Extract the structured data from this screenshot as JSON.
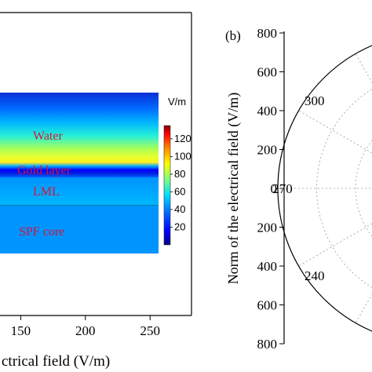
{
  "chart_data": [
    {
      "type": "heatmap",
      "panel_label": "",
      "regions": [
        "Water",
        "Gold layer",
        "LML",
        "SPF core"
      ],
      "colorbar": {
        "unit": "V/m",
        "ticks": [
          20,
          40,
          60,
          80,
          100,
          120
        ],
        "range": [
          0,
          135
        ],
        "colormap": [
          "#000080",
          "#0000ff",
          "#0080ff",
          "#00e0ff",
          "#7fff7f",
          "#ffff00",
          "#ff8000",
          "#ff0000",
          "#800000"
        ]
      },
      "xaxis": {
        "ticks": [
          150,
          200,
          250
        ],
        "tick_labels": [
          "150",
          "200",
          "250"
        ],
        "range": [
          134,
          282
        ],
        "label_visible": "ctrical field (V/m)"
      }
    },
    {
      "type": "polar",
      "panel_label": "(b)",
      "ylabel": "Norm of the electrical field (V/m)",
      "radial_ticks": [
        "800",
        "600",
        "400",
        "200",
        "0",
        "200",
        "400",
        "600",
        "800"
      ],
      "radial_range": [
        0,
        800
      ],
      "angle_labels": [
        "300",
        "270",
        "240"
      ],
      "grid": true
    }
  ]
}
